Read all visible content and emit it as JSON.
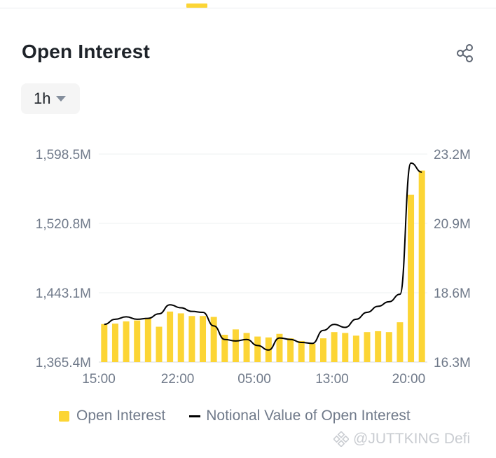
{
  "header": {
    "title": "Open Interest"
  },
  "interval": {
    "selected": "1h"
  },
  "icons": {
    "share": "share-icon",
    "dropdown": "caret-down-icon",
    "watermark_logo": "binance-logo-icon"
  },
  "colors": {
    "bar": "#fcd535",
    "line": "#000000",
    "accent": "#fcd535"
  },
  "legend": {
    "bar_label": "Open Interest",
    "line_label": "Notional Value of Open Interest"
  },
  "watermark": {
    "text": "@JUTTKING Defi"
  },
  "chart_data": {
    "type": "bar",
    "x_ticks": [
      "15:00",
      "22:00",
      "05:00",
      "13:00",
      "20:00"
    ],
    "x_tick_index": [
      0,
      7.2,
      14.2,
      21.3,
      28.3
    ],
    "left_axis": {
      "ticks": [
        "1,598.5M",
        "1,520.8M",
        "1,443.1M",
        "1,365.4M"
      ],
      "range": [
        1365.4,
        1598.5
      ],
      "unit": "M"
    },
    "right_axis": {
      "ticks": [
        "23.2M",
        "20.9M",
        "18.6M",
        "16.3M"
      ],
      "range": [
        16.3,
        23.2
      ],
      "unit": "M"
    },
    "grid": true,
    "legend_position": "bottom",
    "series": [
      {
        "name": "Open Interest",
        "type": "bar",
        "axis": "left",
        "values": [
          1408,
          1408.5,
          1411,
          1412,
          1414,
          1405,
          1422,
          1420,
          1417,
          1417,
          1416,
          1396,
          1402,
          1398,
          1394,
          1393,
          1397,
          1392,
          1389,
          1386,
          1392,
          1399,
          1398,
          1395,
          1399,
          1400,
          1399,
          1410,
          1553,
          1580
        ]
      },
      {
        "name": "Notional Value of Open Interest",
        "type": "line",
        "axis": "right",
        "values": [
          17.55,
          17.72,
          17.8,
          17.72,
          17.75,
          17.9,
          18.2,
          18.1,
          17.98,
          17.95,
          17.5,
          17.05,
          17.0,
          17.05,
          16.85,
          16.7,
          17.1,
          17.05,
          16.95,
          16.92,
          17.35,
          17.55,
          17.45,
          17.72,
          17.95,
          18.15,
          18.3,
          18.55,
          22.9,
          22.6
        ]
      }
    ]
  }
}
